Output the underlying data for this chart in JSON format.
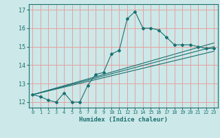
{
  "title": "",
  "xlabel": "Humidex (Indice chaleur)",
  "bg_color": "#cce8e8",
  "grid_color": "#e8a0a0",
  "line_color": "#1a7070",
  "xlim": [
    -0.5,
    23.5
  ],
  "ylim": [
    11.7,
    17.3
  ],
  "xticks": [
    0,
    1,
    2,
    3,
    4,
    5,
    6,
    7,
    8,
    9,
    10,
    11,
    12,
    13,
    14,
    15,
    16,
    17,
    18,
    19,
    20,
    21,
    22,
    23
  ],
  "yticks": [
    12,
    13,
    14,
    15,
    16,
    17
  ],
  "main_x": [
    0,
    1,
    2,
    3,
    4,
    5,
    6,
    7,
    8,
    9,
    10,
    11,
    12,
    13,
    14,
    15,
    16,
    17,
    18,
    19,
    20,
    21,
    22,
    23
  ],
  "main_y": [
    12.4,
    12.3,
    12.1,
    12.0,
    12.5,
    12.0,
    12.0,
    12.9,
    13.5,
    13.6,
    14.6,
    14.8,
    16.5,
    16.9,
    16.0,
    16.0,
    15.9,
    15.5,
    15.1,
    15.1,
    15.1,
    15.0,
    14.9,
    14.9
  ],
  "trend1_x": [
    0,
    23
  ],
  "trend1_y": [
    12.4,
    15.2
  ],
  "trend2_x": [
    0,
    23
  ],
  "trend2_y": [
    12.4,
    15.0
  ],
  "trend3_x": [
    0,
    23
  ],
  "trend3_y": [
    12.4,
    14.75
  ]
}
